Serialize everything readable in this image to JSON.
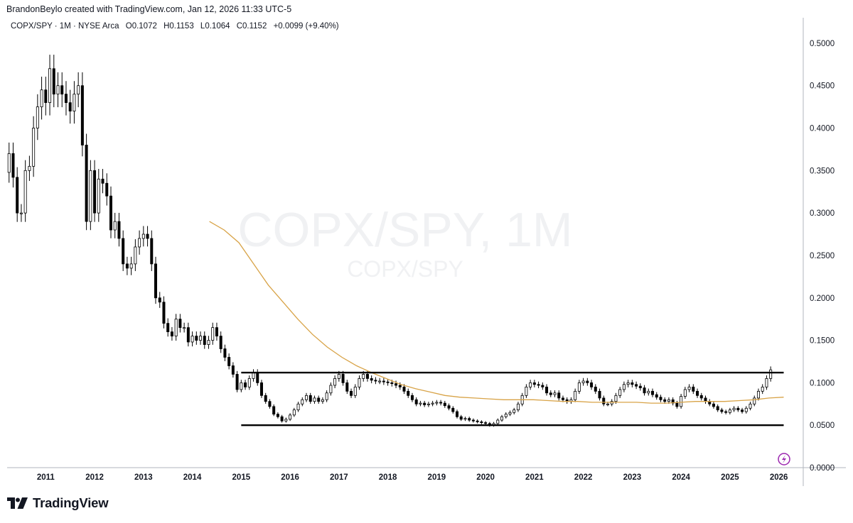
{
  "header": {
    "credit": "BrandonBeylo created with TradingView.com, Jan 12, 2026 11:33 UTC-5"
  },
  "legend": {
    "symbol": "COPX/SPY · 1M · NYSE Arca",
    "open_label": "O",
    "open_value": "0.1072",
    "high_label": "H",
    "high_value": "0.1153",
    "low_label": "L",
    "low_value": "0.1064",
    "close_label": "C",
    "close_value": "0.1152",
    "change": "+0.0099 (+9.40%)"
  },
  "watermark": {
    "main": "COPX/SPY, 1M",
    "sub": "COPX/SPY"
  },
  "footer": {
    "brand": "TradingView"
  },
  "colors": {
    "up_body": "#ffffff",
    "down_body": "#000000",
    "candle_border": "#000000",
    "moving_average": "#d8a347",
    "trendline": "#000000",
    "axis_line": "#b2b5be",
    "badge": "#9c27b0"
  },
  "chart_data": {
    "type": "candlestick",
    "title": "COPX/SPY, 1M",
    "ylim": [
      0.0,
      0.53
    ],
    "y_ticks": [
      "0.5000",
      "0.4500",
      "0.4000",
      "0.3500",
      "0.3000",
      "0.2500",
      "0.2000",
      "0.1500",
      "0.1000",
      "0.0500",
      "0.0000"
    ],
    "y_tick_values": [
      0.5,
      0.45,
      0.4,
      0.35,
      0.3,
      0.25,
      0.2,
      0.15,
      0.1,
      0.05,
      0.0
    ],
    "x_ticks": [
      "2011",
      "2012",
      "2013",
      "2014",
      "2015",
      "2016",
      "2017",
      "2018",
      "2019",
      "2020",
      "2021",
      "2022",
      "2023",
      "2024",
      "2025",
      "2026"
    ],
    "x_tick_years": [
      2011,
      2012,
      2013,
      2014,
      2015,
      2016,
      2017,
      2018,
      2019,
      2020,
      2021,
      2022,
      2023,
      2024,
      2025,
      2026
    ],
    "xlim_year": [
      2010.21,
      2026.5
    ],
    "candles": {
      "start_year": 2010.25,
      "closes": [
        0.37,
        0.342,
        0.3,
        0.3,
        0.35,
        0.355,
        0.4,
        0.425,
        0.445,
        0.43,
        0.47,
        0.44,
        0.45,
        0.44,
        0.43,
        0.42,
        0.44,
        0.45,
        0.38,
        0.29,
        0.35,
        0.3,
        0.34,
        0.335,
        0.32,
        0.28,
        0.29,
        0.27,
        0.24,
        0.235,
        0.24,
        0.26,
        0.27,
        0.275,
        0.27,
        0.24,
        0.2,
        0.195,
        0.17,
        0.16,
        0.155,
        0.175,
        0.165,
        0.165,
        0.148,
        0.155,
        0.15,
        0.155,
        0.145,
        0.15,
        0.165,
        0.155,
        0.14,
        0.13,
        0.12,
        0.11,
        0.092,
        0.1,
        0.095,
        0.105,
        0.112,
        0.1,
        0.085,
        0.078,
        0.072,
        0.063,
        0.06,
        0.055,
        0.057,
        0.062,
        0.068,
        0.075,
        0.08,
        0.085,
        0.078,
        0.082,
        0.078,
        0.08,
        0.088,
        0.097,
        0.105,
        0.11,
        0.1,
        0.09,
        0.085,
        0.095,
        0.105,
        0.11,
        0.105,
        0.103,
        0.102,
        0.102,
        0.101,
        0.1,
        0.099,
        0.097,
        0.095,
        0.09,
        0.085,
        0.08,
        0.075,
        0.076,
        0.074,
        0.075,
        0.076,
        0.077,
        0.076,
        0.073,
        0.07,
        0.066,
        0.06,
        0.057,
        0.058,
        0.056,
        0.055,
        0.054,
        0.053,
        0.052,
        0.05,
        0.052,
        0.056,
        0.06,
        0.063,
        0.065,
        0.068,
        0.075,
        0.085,
        0.095,
        0.1,
        0.098,
        0.097,
        0.095,
        0.088,
        0.086,
        0.088,
        0.082,
        0.08,
        0.078,
        0.08,
        0.09,
        0.1,
        0.102,
        0.1,
        0.095,
        0.09,
        0.082,
        0.075,
        0.075,
        0.078,
        0.085,
        0.092,
        0.098,
        0.1,
        0.098,
        0.096,
        0.094,
        0.088,
        0.09,
        0.086,
        0.083,
        0.08,
        0.078,
        0.08,
        0.076,
        0.072,
        0.084,
        0.092,
        0.095,
        0.09,
        0.085,
        0.082,
        0.078,
        0.075,
        0.072,
        0.068,
        0.066,
        0.065,
        0.068,
        0.07,
        0.068,
        0.066,
        0.07,
        0.075,
        0.082,
        0.09,
        0.095,
        0.105,
        0.1152
      ]
    },
    "moving_average": {
      "start_year": 2014.35,
      "values": [
        0.29,
        0.28,
        0.265,
        0.24,
        0.215,
        0.195,
        0.175,
        0.157,
        0.142,
        0.13,
        0.12,
        0.112,
        0.105,
        0.098,
        0.093,
        0.089,
        0.085,
        0.083,
        0.082,
        0.081,
        0.08,
        0.08,
        0.08,
        0.079,
        0.078,
        0.078,
        0.077,
        0.077,
        0.077,
        0.077,
        0.076,
        0.076,
        0.077,
        0.078,
        0.078,
        0.078,
        0.079,
        0.08,
        0.082,
        0.083
      ]
    },
    "upper_line": {
      "value": 0.112,
      "from_year": 2015.0,
      "to_year": 2026.1
    },
    "lower_line": {
      "value": 0.05,
      "from_year": 2015.0,
      "to_year": 2026.1
    }
  }
}
